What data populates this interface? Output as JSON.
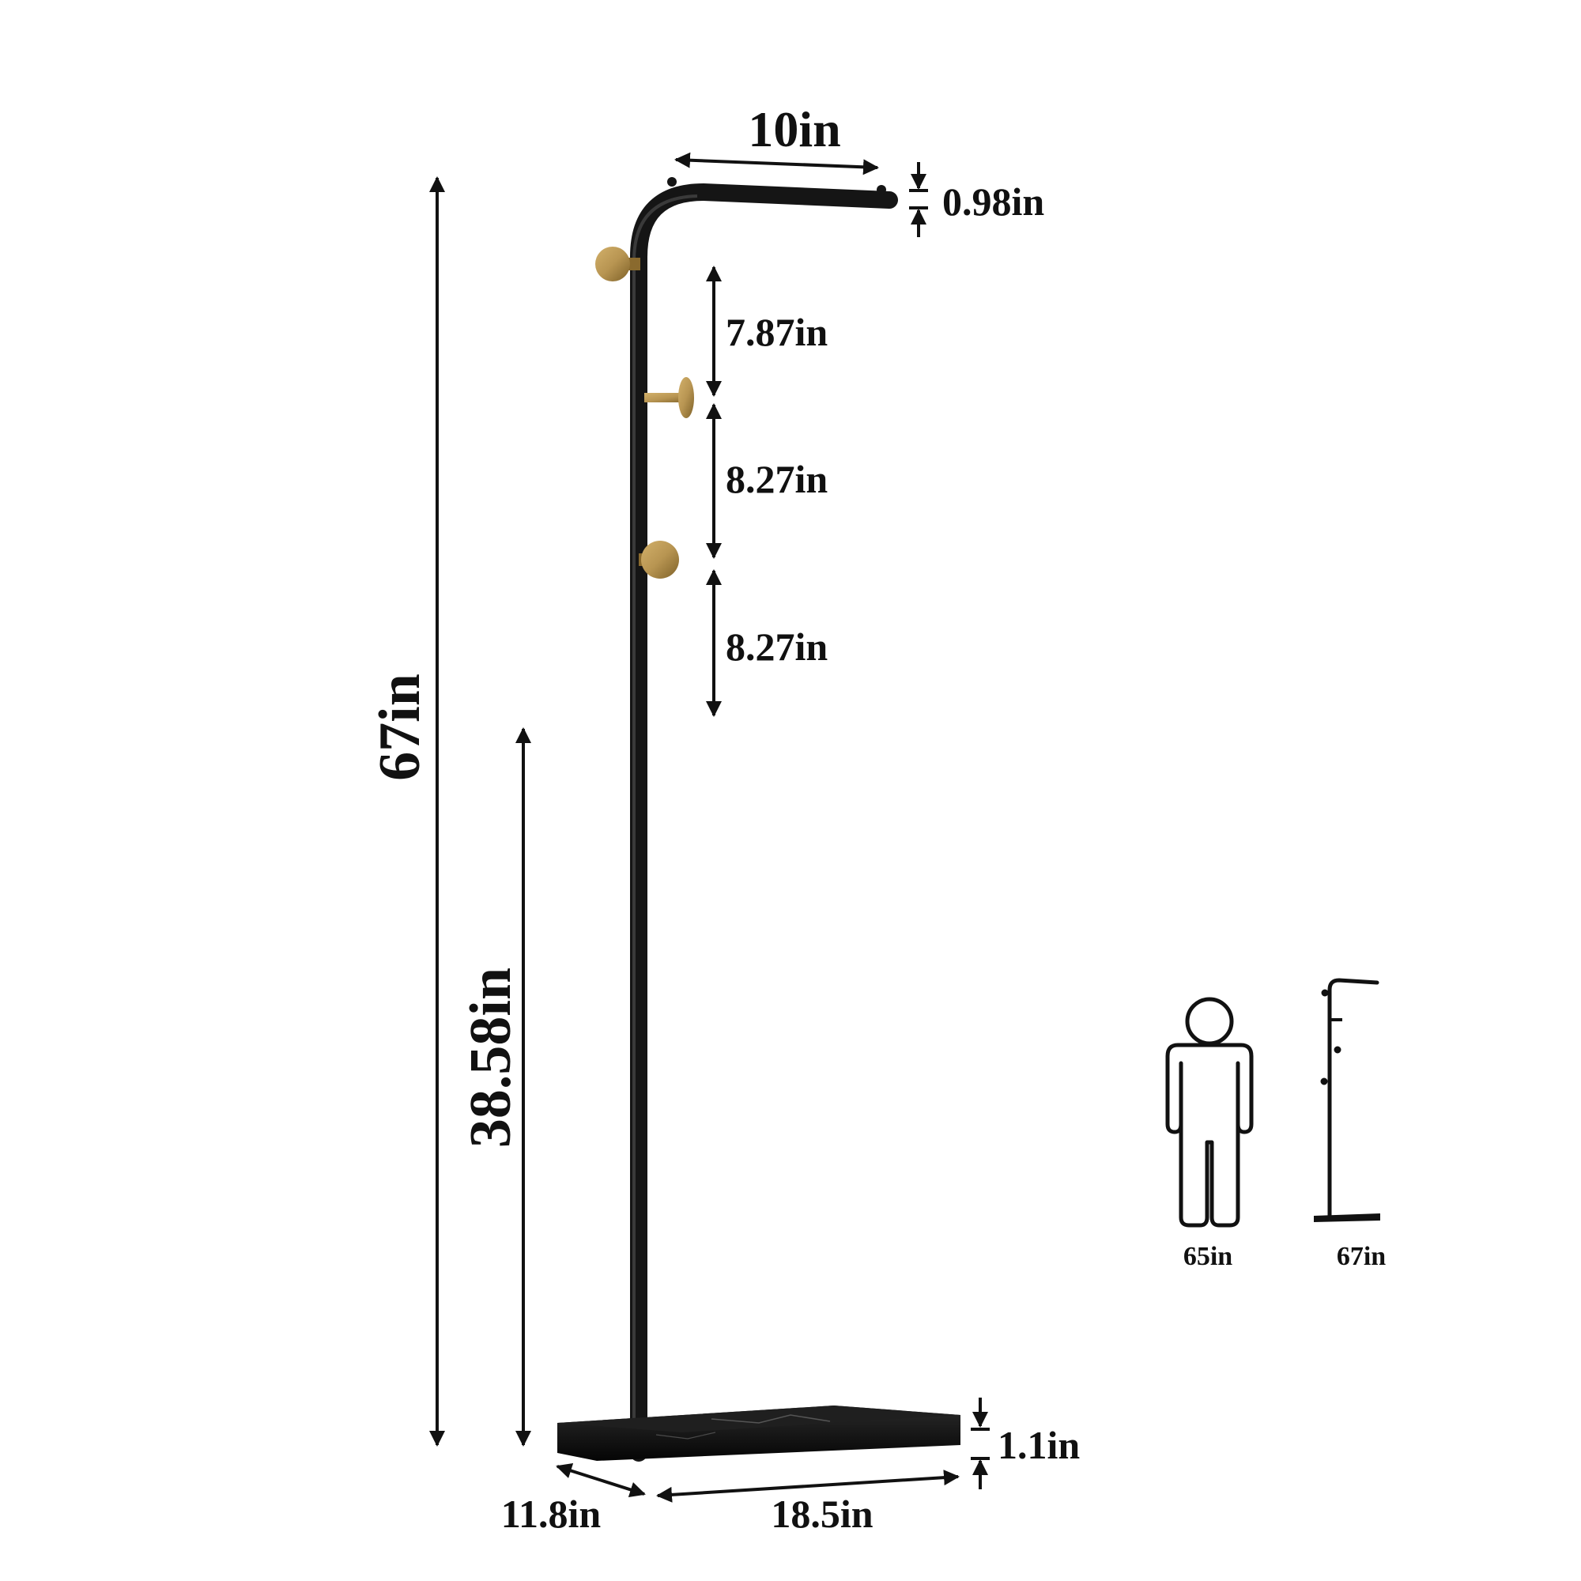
{
  "dimensions": {
    "top_arm_length": "10in",
    "arm_thickness": "0.98in",
    "hook_gap_1": "7.87in",
    "hook_gap_2": "8.27in",
    "hook_gap_3": "8.27in",
    "total_height": "67in",
    "lower_height": "38.58in",
    "base_thickness": "1.1in",
    "base_depth": "11.8in",
    "base_width": "18.5in"
  },
  "comparison": {
    "person_height": "65in",
    "rack_height": "67in"
  },
  "colors": {
    "frame": "#151515",
    "hook": "#b89552",
    "hook_dark": "#8a6a2e",
    "base": "#0e0e0e",
    "arrow": "#111111"
  },
  "icons": [
    "person-icon",
    "mini-coat-rack-icon"
  ]
}
